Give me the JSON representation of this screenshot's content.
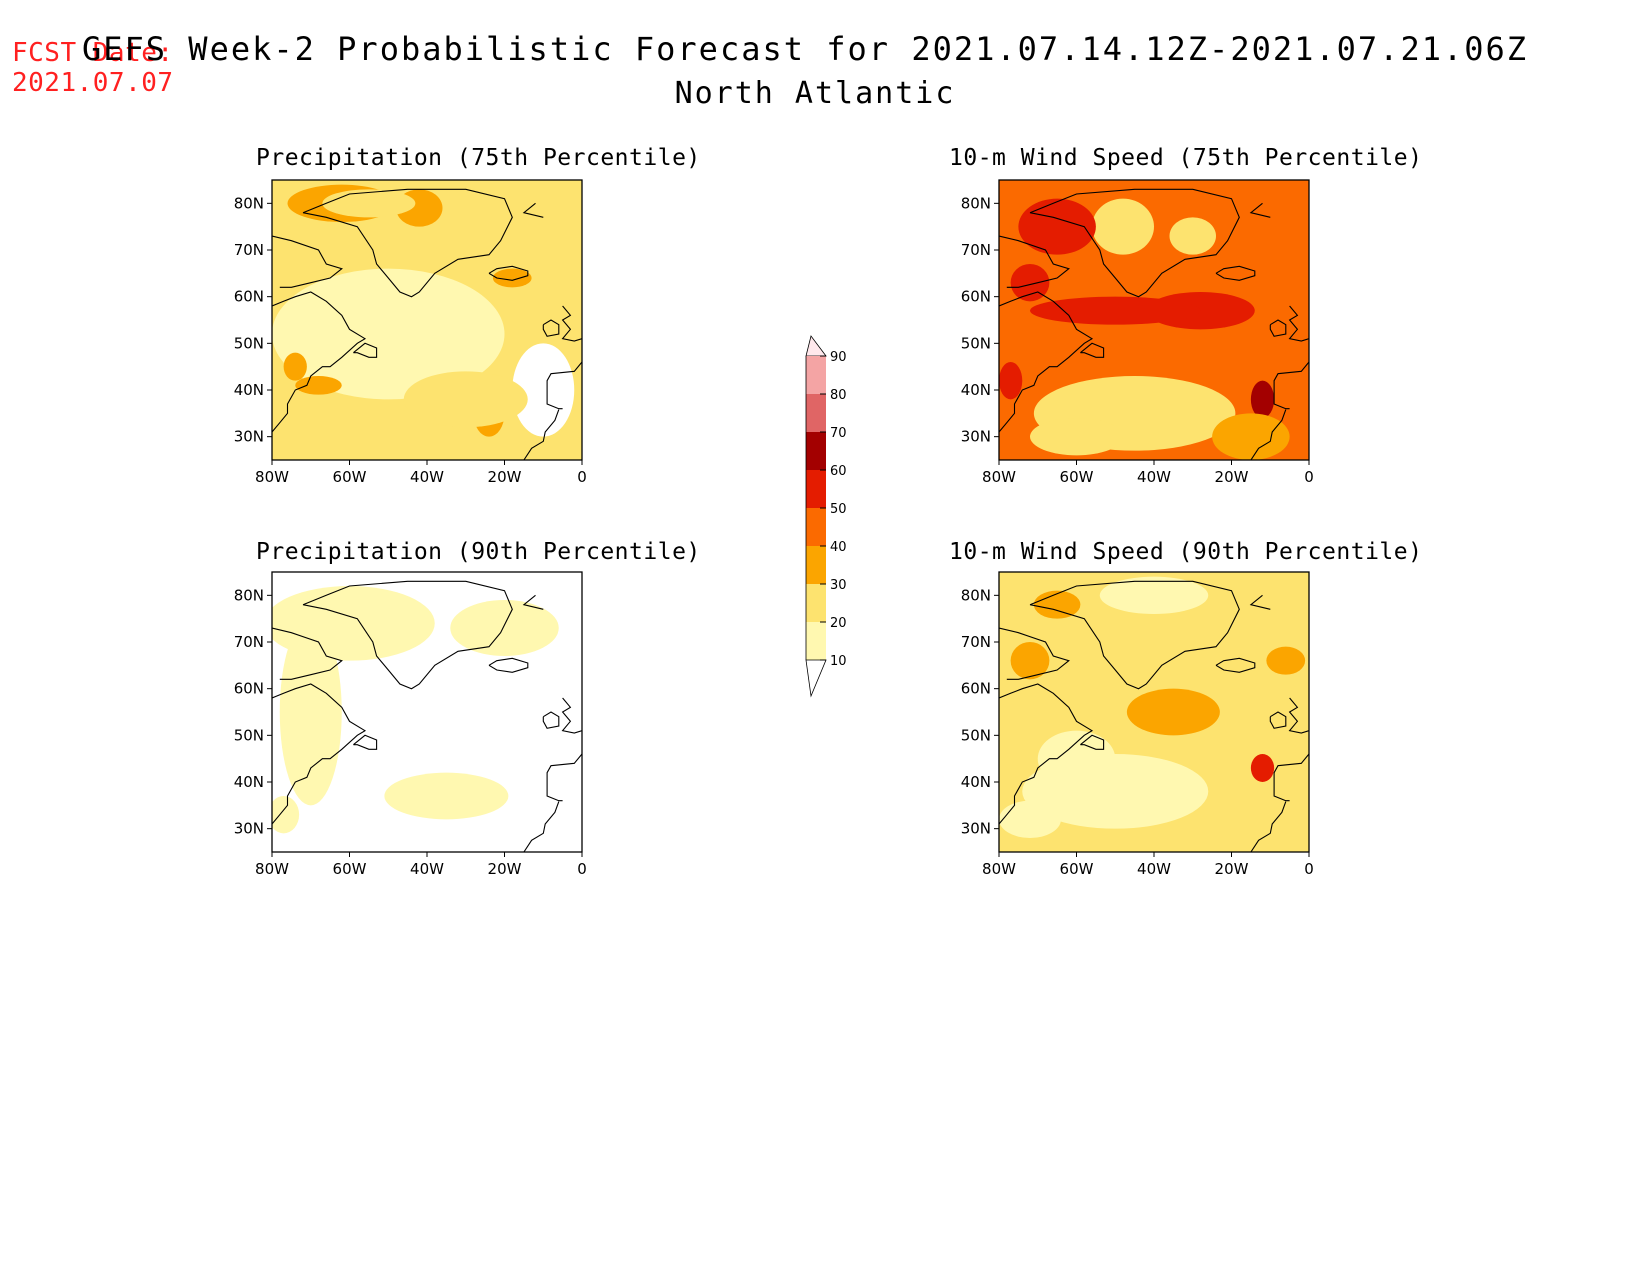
{
  "header": {
    "fcst_label": "FCST Date:",
    "fcst_date": "2021.07.07",
    "title": "GEFS Week-2 Probabilistic Forecast for 2021.07.14.12Z-2021.07.21.06Z",
    "subtitle": "North Atlantic"
  },
  "axes": {
    "lat_labels": [
      "80N",
      "70N",
      "60N",
      "50N",
      "40N",
      "30N"
    ],
    "lat_values": [
      80,
      70,
      60,
      50,
      40,
      30
    ],
    "lon_labels": [
      "80W",
      "60W",
      "40W",
      "20W",
      "0"
    ],
    "lon_values": [
      -80,
      -60,
      -40,
      -20,
      0
    ],
    "lon_range": [
      -80,
      0
    ],
    "lat_range": [
      25,
      85
    ]
  },
  "panels": [
    {
      "id": "precip75",
      "title": "Precipitation (75th Percentile)",
      "base_level": 20
    },
    {
      "id": "wind75",
      "title": "10-m Wind Speed (75th Percentile)",
      "base_level": 40
    },
    {
      "id": "precip90",
      "title": "Precipitation (90th Percentile)",
      "base_level": 0
    },
    {
      "id": "wind90",
      "title": "10-m Wind Speed (90th Percentile)",
      "base_level": 20
    }
  ],
  "colorbar": {
    "levels": [
      "10",
      "20",
      "30",
      "40",
      "50",
      "60",
      "70",
      "80",
      "90"
    ],
    "colors": [
      "#ffffff",
      "#fff8b0",
      "#fde36f",
      "#fba500",
      "#fb6a00",
      "#e41c00",
      "#a30000",
      "#e06565",
      "#f4a4a4",
      "#ffe8ec"
    ]
  }
}
